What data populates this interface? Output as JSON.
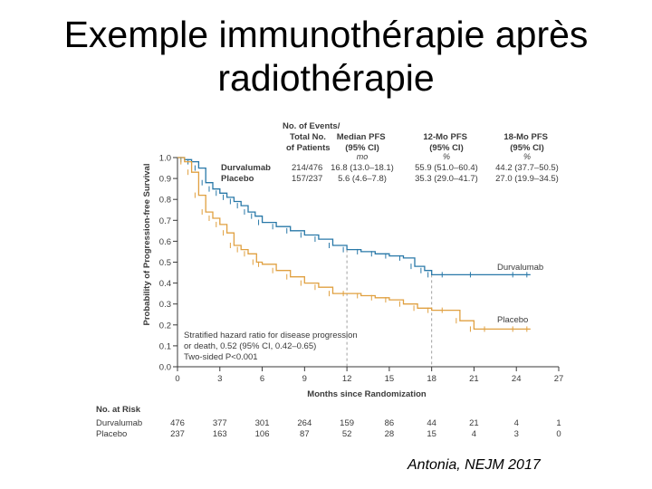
{
  "slide": {
    "title_line1": "Exemple immunothérapie après",
    "title_line2": "radiothérapie",
    "citation": "Antonia, NEJM 2017"
  },
  "colors": {
    "durvalumab": "#2878a8",
    "placebo": "#e0a040",
    "text": "#3a3a3a",
    "reference": "#a0a0a0"
  },
  "table": {
    "headers": {
      "events": "No. of Events/ Total No. of Patients",
      "median": "Median PFS (95% CI)",
      "mo12": "12-Mo PFS (95% CI)",
      "mo18": "18-Mo PFS (95% CI)"
    },
    "units": {
      "median": "mo",
      "mo12": "%",
      "mo18": "%"
    },
    "rows": [
      {
        "name": "Durvalumab",
        "events": "214/476",
        "median": "16.8 (13.0–18.1)",
        "mo12": "55.9 (51.0–60.4)",
        "mo18": "44.2 (37.7–50.5)"
      },
      {
        "name": "Placebo",
        "events": "157/237",
        "median": "5.6 (4.6–7.8)",
        "mo12": "35.3 (29.0–41.7)",
        "mo18": "27.0 (19.9–34.5)"
      }
    ]
  },
  "annotation": {
    "line1": "Stratified hazard ratio for disease progression",
    "line2": "or death, 0.52 (95% CI, 0.42–0.65)",
    "line3": "Two-sided P<0.001"
  },
  "risk": {
    "title": "No. at Risk",
    "rows": [
      {
        "name": "Durvalumab",
        "values": [
          476,
          377,
          301,
          264,
          159,
          86,
          44,
          21,
          4,
          1
        ]
      },
      {
        "name": "Placebo",
        "values": [
          237,
          163,
          106,
          87,
          52,
          28,
          15,
          4,
          3,
          0
        ]
      }
    ]
  },
  "chart_data": {
    "type": "line",
    "xlabel": "Months since Randomization",
    "ylabel": "Probability of Progression-free Survival",
    "xlim": [
      0,
      27
    ],
    "ylim": [
      0,
      1.0
    ],
    "xticks": [
      0,
      3,
      6,
      9,
      12,
      15,
      18,
      21,
      24,
      27
    ],
    "yticks": [
      0.0,
      0.1,
      0.2,
      0.3,
      0.4,
      0.5,
      0.6,
      0.7,
      0.8,
      0.9,
      1.0
    ],
    "ytick_labels": [
      "0.0",
      "0.1",
      "0.2",
      "0.3",
      "0.4",
      "0.5",
      "0.6",
      "0.7",
      "0.8",
      "0.9",
      "1.0"
    ],
    "reference_lines_x": [
      12,
      18
    ],
    "series": [
      {
        "name": "Durvalumab",
        "x": [
          0,
          0.5,
          1.0,
          1.5,
          2.0,
          2.5,
          3.0,
          3.5,
          4.0,
          4.5,
          5.0,
          5.5,
          6.0,
          7.0,
          8.0,
          9.0,
          10.0,
          11.0,
          12.0,
          13.0,
          14.0,
          15.0,
          16.0,
          16.8,
          17.5,
          18.0,
          19.0,
          21.0,
          24.0,
          25.0
        ],
        "y": [
          1.0,
          0.99,
          0.98,
          0.95,
          0.88,
          0.85,
          0.83,
          0.81,
          0.79,
          0.77,
          0.74,
          0.72,
          0.69,
          0.67,
          0.65,
          0.63,
          0.61,
          0.58,
          0.56,
          0.55,
          0.54,
          0.53,
          0.52,
          0.48,
          0.46,
          0.44,
          0.44,
          0.44,
          0.44,
          0.44
        ]
      },
      {
        "name": "Placebo",
        "x": [
          0,
          0.5,
          1.0,
          1.5,
          2.0,
          2.5,
          3.0,
          3.5,
          4.0,
          4.5,
          5.0,
          5.6,
          6.0,
          7.0,
          8.0,
          9.0,
          10.0,
          11.0,
          12.0,
          13.0,
          14.0,
          15.0,
          16.0,
          17.0,
          18.0,
          19.0,
          20.0,
          21.0,
          22.0,
          24.0,
          25.0
        ],
        "y": [
          1.0,
          0.98,
          0.93,
          0.82,
          0.74,
          0.71,
          0.68,
          0.64,
          0.58,
          0.56,
          0.54,
          0.5,
          0.49,
          0.46,
          0.43,
          0.4,
          0.38,
          0.35,
          0.35,
          0.34,
          0.33,
          0.32,
          0.3,
          0.28,
          0.27,
          0.27,
          0.22,
          0.18,
          0.18,
          0.18,
          0.18
        ]
      }
    ],
    "curve_labels": [
      "Durvalumab",
      "Placebo"
    ]
  }
}
